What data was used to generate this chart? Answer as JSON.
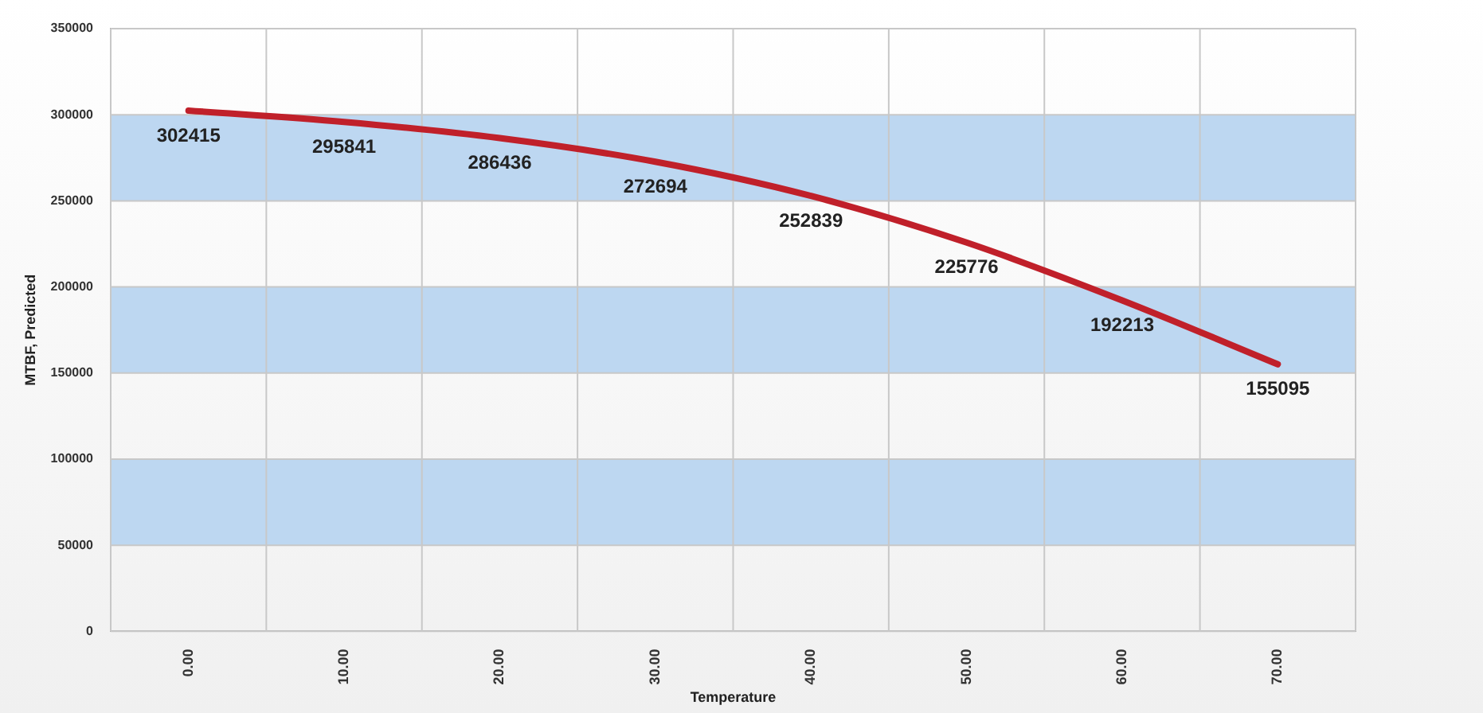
{
  "chart_data": {
    "type": "line",
    "xlabel": "Temperature",
    "ylabel": "MTBF, Predicted",
    "categories": [
      "0.00",
      "10.00",
      "20.00",
      "30.00",
      "40.00",
      "50.00",
      "60.00",
      "70.00"
    ],
    "series": [
      {
        "color": "#c0202a",
        "values": [
          302415,
          295841,
          286436,
          272694,
          252839,
          225776,
          192213,
          155095
        ]
      }
    ],
    "ylim": [
      0,
      350000
    ],
    "yticks": [
      0,
      50000,
      100000,
      150000,
      200000,
      250000,
      300000,
      350000
    ],
    "bands": [
      {
        "axis": "y",
        "from": 50000,
        "to": 100000,
        "color": "#bdd7f1"
      },
      {
        "axis": "y",
        "from": 150000,
        "to": 200000,
        "color": "#bdd7f1"
      },
      {
        "axis": "y",
        "from": 250000,
        "to": 300000,
        "color": "#bdd7f1"
      }
    ],
    "grid": true,
    "marker": "none",
    "line_style": "solid",
    "legend": false,
    "data_labels": true
  }
}
